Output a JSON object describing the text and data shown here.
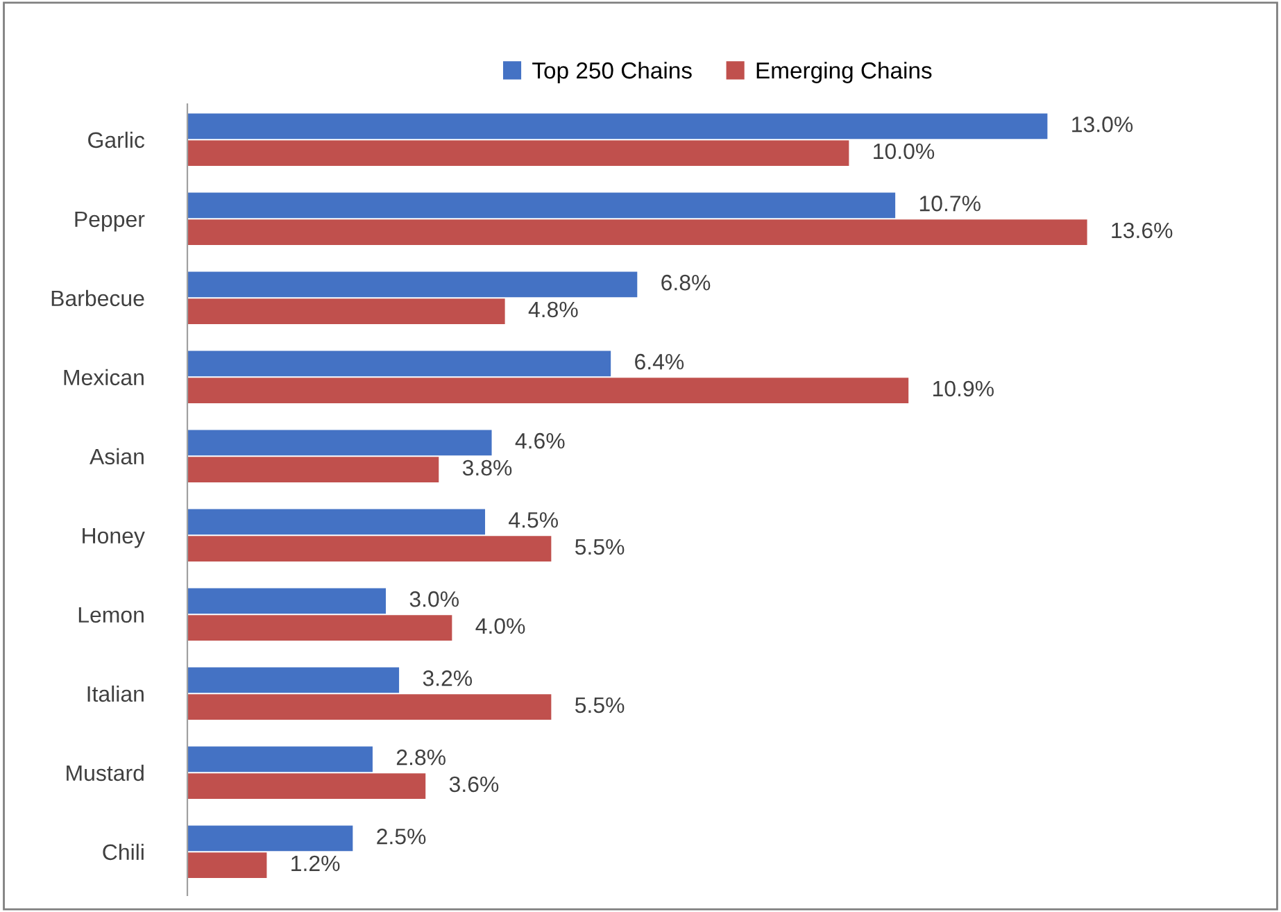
{
  "chart_data": {
    "type": "bar",
    "orientation": "horizontal",
    "legend": "top",
    "grid": false,
    "categories": [
      "Garlic",
      "Pepper",
      "Barbecue",
      "Mexican",
      "Asian",
      "Honey",
      "Lemon",
      "Italian",
      "Mustard",
      "Chili"
    ],
    "series": [
      {
        "name": "Top 250 Chains",
        "color": "#4472c4",
        "values": [
          13.0,
          10.7,
          6.8,
          6.4,
          4.6,
          4.5,
          3.0,
          3.2,
          2.8,
          2.5
        ],
        "value_labels": [
          "13.0%",
          "10.7%",
          "6.8%",
          "6.4%",
          "4.6%",
          "4.5%",
          "3.0%",
          "3.2%",
          "2.8%",
          "2.5%"
        ]
      },
      {
        "name": "Emerging Chains",
        "color": "#c0504d",
        "values": [
          10.0,
          13.6,
          4.8,
          10.9,
          3.8,
          5.5,
          4.0,
          5.5,
          3.6,
          1.2
        ],
        "value_labels": [
          "10.0%",
          "13.6%",
          "4.8%",
          "10.9%",
          "3.8%",
          "5.5%",
          "4.0%",
          "5.5%",
          "3.6%",
          "1.2%"
        ]
      }
    ]
  }
}
